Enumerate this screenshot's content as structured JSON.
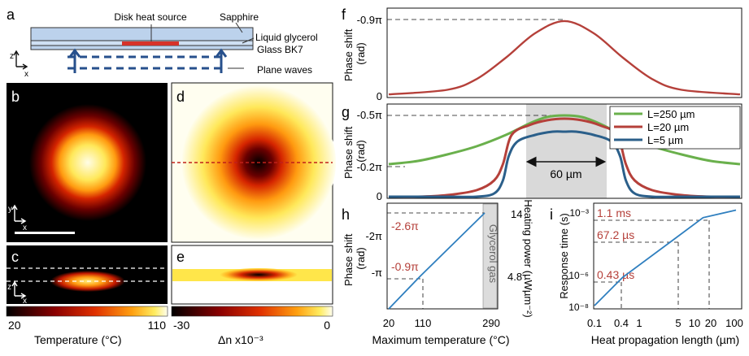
{
  "panel_letters": [
    "a",
    "b",
    "c",
    "d",
    "e",
    "f",
    "g",
    "h",
    "i"
  ],
  "schematic": {
    "disk_label": "Disk heat source",
    "sapphire_label": "Sapphire",
    "glycerol_label": "Liquid glycerol",
    "glass_label": "Glass BK7",
    "plane_waves_label": "Plane waves",
    "axis_z": "z",
    "axis_x": "x",
    "axis_y": "y"
  },
  "colorbars": {
    "temperature": {
      "min": "20",
      "max": "110",
      "label": "Temperature (°C)"
    },
    "delta_n": {
      "min": "-30",
      "max": "0",
      "label": "Δn x10⁻³"
    }
  },
  "chart_data": [
    {
      "panel": "f",
      "type": "line",
      "ylabel": "Phase shift (rad)",
      "yticks": [
        "-0.9π",
        "0"
      ],
      "ylim": [
        0,
        1
      ],
      "series": [
        {
          "color": "#b5403a",
          "x": [
            -3,
            -2,
            -1.5,
            -1,
            -0.5,
            0,
            0.5,
            1,
            1.5,
            2,
            3
          ],
          "y": [
            0.02,
            0.08,
            0.22,
            0.5,
            0.82,
            0.98,
            0.82,
            0.5,
            0.22,
            0.08,
            0.02
          ]
        }
      ]
    },
    {
      "panel": "g",
      "type": "line",
      "ylabel": "Phase shift (rad)",
      "yticks": [
        "-0.5π",
        "-0.2π",
        "0"
      ],
      "annotation": "60 µm",
      "legend_position": "top-right",
      "series": [
        {
          "name": "L=250 µm",
          "color": "#6ab04c",
          "x": [
            -3,
            -2.5,
            -2,
            -1.5,
            -1,
            -0.6,
            -0.3,
            0,
            0.3,
            0.6,
            1,
            1.5,
            2,
            2.5,
            3
          ],
          "y": [
            0.2,
            0.22,
            0.26,
            0.31,
            0.38,
            0.45,
            0.49,
            0.5,
            0.49,
            0.45,
            0.38,
            0.31,
            0.26,
            0.22,
            0.2
          ]
        },
        {
          "name": "L=20 µm",
          "color": "#b5403a",
          "x": [
            -3,
            -2.5,
            -2,
            -1.5,
            -1.2,
            -1.05,
            -0.9,
            -0.6,
            -0.3,
            0,
            0.3,
            0.6,
            0.9,
            1.05,
            1.2,
            1.5,
            2,
            2.5,
            3
          ],
          "y": [
            0.0,
            0.0,
            0.01,
            0.04,
            0.1,
            0.2,
            0.38,
            0.44,
            0.47,
            0.48,
            0.47,
            0.44,
            0.38,
            0.2,
            0.1,
            0.04,
            0.01,
            0.0,
            0.0
          ]
        },
        {
          "name": "L=5 µm",
          "color": "#2b5f8a",
          "x": [
            -3,
            -2,
            -1.5,
            -1.2,
            -1.05,
            -0.95,
            -0.8,
            -0.5,
            -0.2,
            0,
            0.2,
            0.5,
            0.8,
            0.95,
            1.05,
            1.2,
            1.5,
            2,
            3
          ],
          "y": [
            0,
            0,
            0,
            0.02,
            0.1,
            0.25,
            0.34,
            0.38,
            0.4,
            0.4,
            0.4,
            0.38,
            0.34,
            0.25,
            0.1,
            0.02,
            0,
            0,
            0
          ]
        }
      ]
    },
    {
      "panel": "h",
      "type": "line",
      "xlabel": "Maximum temperature (°C)",
      "ylabel": "Phase shift (rad)",
      "y2label": "Heating power (µWµm⁻²)",
      "xticks": [
        "20",
        "110",
        "290"
      ],
      "yticks": [
        "-π",
        "-2π"
      ],
      "y2ticks": [
        "4.8",
        "14"
      ],
      "annotations": [
        "-2.6π",
        "-0.9π",
        "Glycerol gas"
      ],
      "series": [
        {
          "color": "#2f7fbf",
          "x": [
            20,
            110,
            290
          ],
          "y": [
            0,
            -0.9,
            -2.6
          ]
        }
      ]
    },
    {
      "panel": "i",
      "type": "line",
      "xlabel": "Heat propagation length (µm)",
      "ylabel": "Response time (s)",
      "xticks": [
        "0.1",
        "0.4",
        "1",
        "5",
        "10",
        "20",
        "100"
      ],
      "yticks": [
        "10⁻⁸",
        "10⁻⁶",
        "10⁻³"
      ],
      "annotations": [
        "1.1 ms",
        "67.2 µs",
        "0.43 µs"
      ],
      "series": [
        {
          "color": "#2f7fbf",
          "x": [
            0.1,
            0.4,
            5,
            20,
            100
          ],
          "y": [
            1e-08,
            4.3e-07,
            6.72e-05,
            0.0011,
            0.003
          ]
        }
      ]
    }
  ]
}
